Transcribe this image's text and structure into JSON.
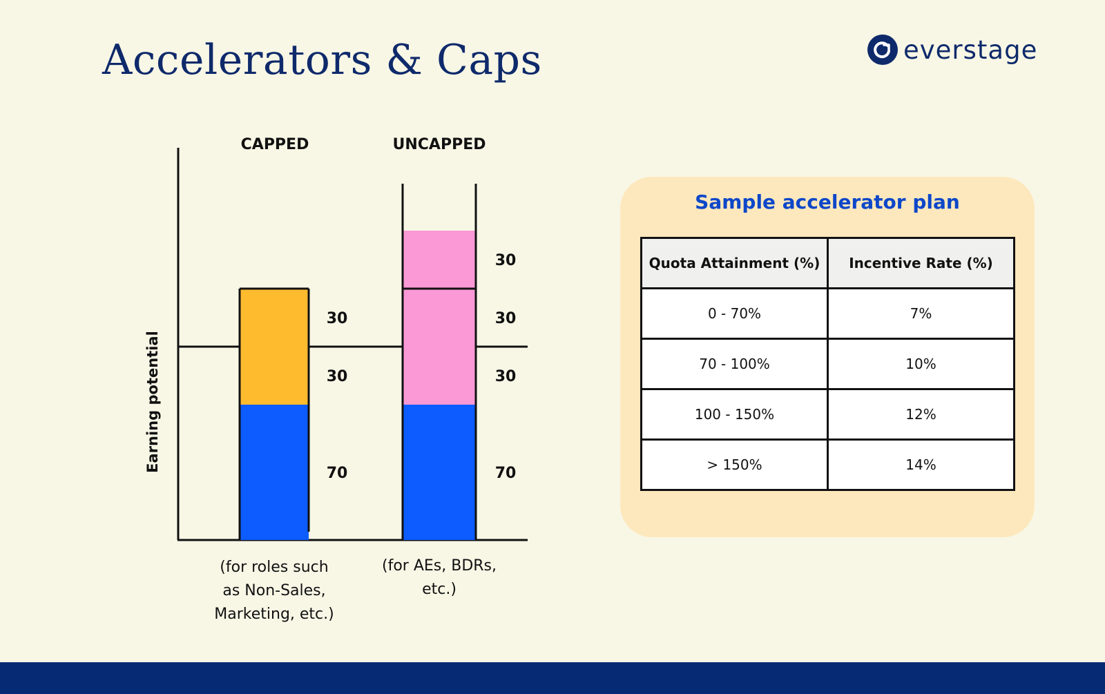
{
  "title": "Accelerators & Caps",
  "logo": {
    "text": "everstage",
    "icon": "everstage-logo-icon"
  },
  "chart_data": {
    "type": "bar",
    "stacked": true,
    "ylabel": "Earning potential",
    "categories": [
      "CAPPED",
      "UNCAPPED"
    ],
    "captions": [
      "(for roles such|as Non-Sales,|Marketing, etc.)",
      "(for AEs, BDRs,|etc.)"
    ],
    "series": [
      {
        "color": "#0d5cff",
        "values": [
          70,
          70
        ]
      },
      {
        "color_capped": "#ffbb2e",
        "color_uncapped": "#fb98d6",
        "values": [
          30,
          30
        ]
      },
      {
        "color_capped": "#ffbb2e",
        "color_uncapped": "#fb98d6",
        "values": [
          30,
          30
        ]
      },
      {
        "color_uncapped": "#fb98d6",
        "values": [
          null,
          30
        ]
      }
    ],
    "segment_labels": [
      [
        "70",
        "30",
        "30"
      ],
      [
        "70",
        "30",
        "30",
        "30"
      ]
    ],
    "target_line_value": 100,
    "ylim": [
      0,
      170
    ],
    "colors": {
      "base": "#0d5cff",
      "capped_bonus": "#ffbb2e",
      "uncapped_bonus": "#fb98d6"
    }
  },
  "plan": {
    "title": "Sample accelerator plan",
    "headers": [
      "Quota Attainment (%)",
      "Incentive Rate (%)"
    ],
    "rows": [
      [
        "0 - 70%",
        "7%"
      ],
      [
        "70 - 100%",
        "10%"
      ],
      [
        "100 - 150%",
        "12%"
      ],
      [
        "> 150%",
        "14%"
      ]
    ]
  },
  "colors": {
    "background": "#f8f7e6",
    "navy": "#0f2a6b",
    "accent_blue": "#0d47c9",
    "card": "#fde8bd",
    "footer": "#062a73"
  }
}
